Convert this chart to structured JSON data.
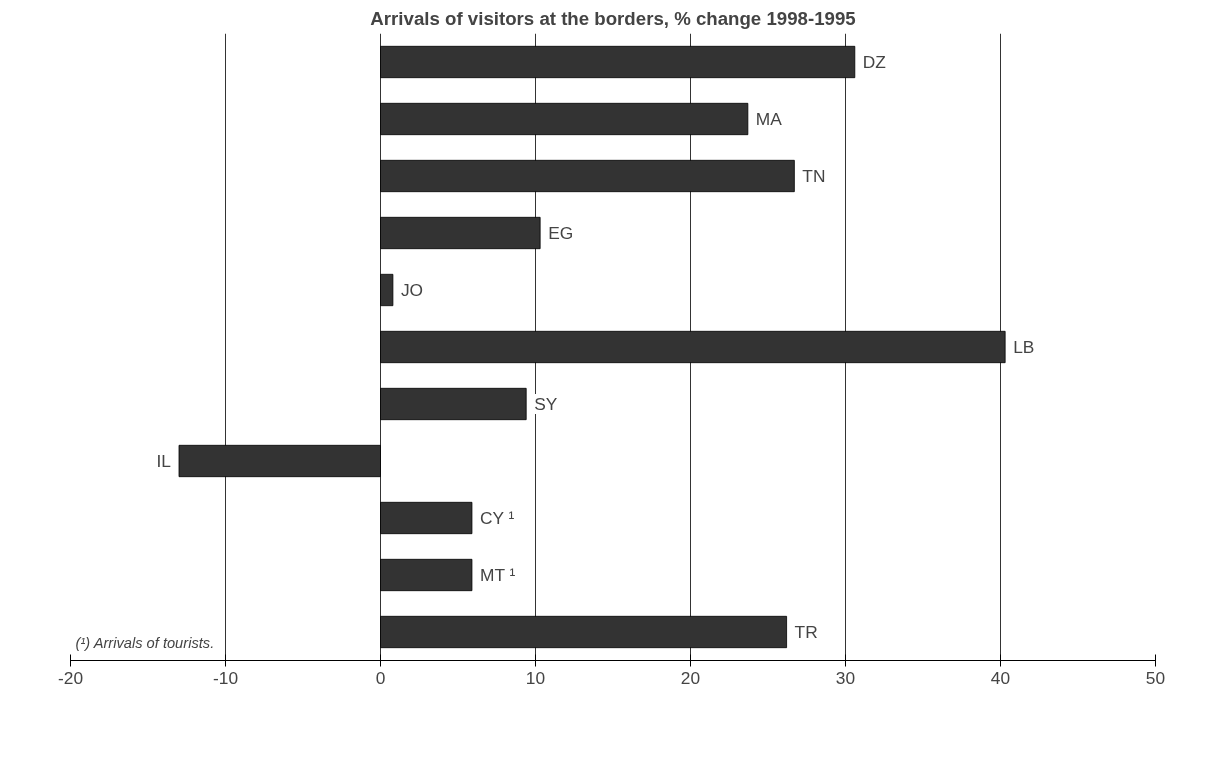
{
  "chart_data": {
    "type": "bar",
    "orientation": "horizontal",
    "title": "Arrivals of visitors at the borders, % change 1998-1995",
    "categories": [
      "DZ",
      "MA",
      "TN",
      "EG",
      "JO",
      "LB",
      "SY",
      "IL",
      "CY ¹",
      "MT ¹",
      "TR"
    ],
    "values": [
      30.6,
      23.7,
      26.7,
      10.3,
      0.8,
      40.3,
      9.4,
      -13.0,
      5.9,
      5.9,
      26.2
    ],
    "color": "#333333",
    "xlim": [
      -20,
      50
    ],
    "xticks": [
      -20,
      -10,
      0,
      10,
      20,
      30,
      40,
      50
    ],
    "grid": "x",
    "tick_labels": "x",
    "annotations": [
      "(¹) Arrivals of tourists."
    ]
  }
}
